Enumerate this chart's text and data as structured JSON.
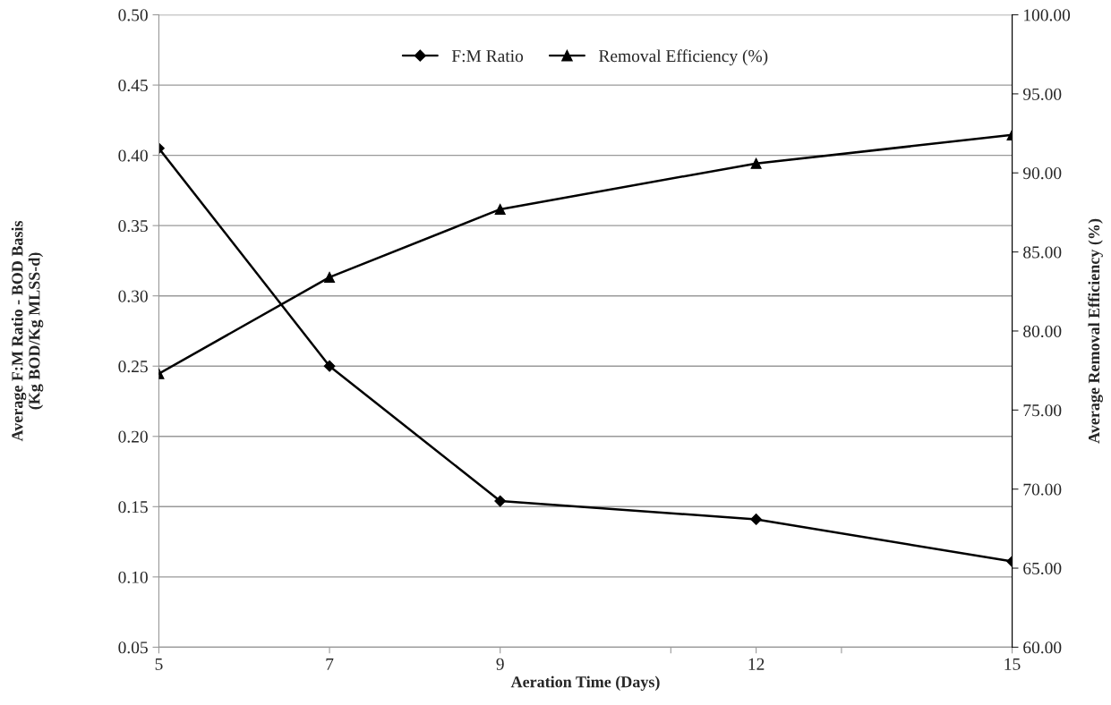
{
  "chart_data": {
    "type": "line",
    "xlabel": "Aeration Time (Days)",
    "ylabel": "Average F:M Ratio - BOD Basis\n(Kg BOD/Kg MLSS-d)",
    "y2label": "Average Removal Efficiency (%)",
    "x": [
      5,
      7,
      9,
      12,
      15
    ],
    "xlim": [
      5,
      15
    ],
    "xticks": [
      5,
      7,
      9,
      {
        "value": 11,
        "label": null
      },
      12,
      {
        "value": 13,
        "label": null
      },
      15
    ],
    "ylim": [
      0.05,
      0.5
    ],
    "yticks": [
      {
        "value": 0.05,
        "label": "0.05"
      },
      {
        "value": 0.1,
        "label": "0.10"
      },
      {
        "value": 0.15,
        "label": "0.15"
      },
      {
        "value": 0.2,
        "label": "0.20"
      },
      {
        "value": 0.25,
        "label": "0.25"
      },
      {
        "value": 0.3,
        "label": "0.30"
      },
      {
        "value": 0.35,
        "label": "0.35"
      },
      {
        "value": 0.4,
        "label": "0.40"
      },
      {
        "value": 0.45,
        "label": "0.45"
      },
      {
        "value": 0.5,
        "label": "0.50"
      }
    ],
    "y2lim": [
      60,
      100
    ],
    "y2ticks": [
      {
        "value": 60,
        "label": "60.00"
      },
      {
        "value": 65,
        "label": "65.00"
      },
      {
        "value": 70,
        "label": "70.00"
      },
      {
        "value": 75,
        "label": "75.00"
      },
      {
        "value": 80,
        "label": "80.00"
      },
      {
        "value": 85,
        "label": "85.00"
      },
      {
        "value": 90,
        "label": "90.00"
      },
      {
        "value": 95,
        "label": "95.00"
      },
      {
        "value": 100,
        "label": "100.00"
      }
    ],
    "grid": "y",
    "legend": "top",
    "line_style": "solid",
    "series": [
      {
        "name": "F:M Ratio",
        "color": "#000000",
        "marker": "diamond",
        "values": [
          0.405,
          0.25,
          0.154,
          0.141,
          0.111
        ]
      },
      {
        "name": "Removal Efficiency (%)",
        "color": "#000000",
        "marker": "triangle",
        "axis": "y2",
        "values": [
          77.3,
          83.4,
          87.7,
          90.6,
          92.4
        ]
      }
    ]
  }
}
